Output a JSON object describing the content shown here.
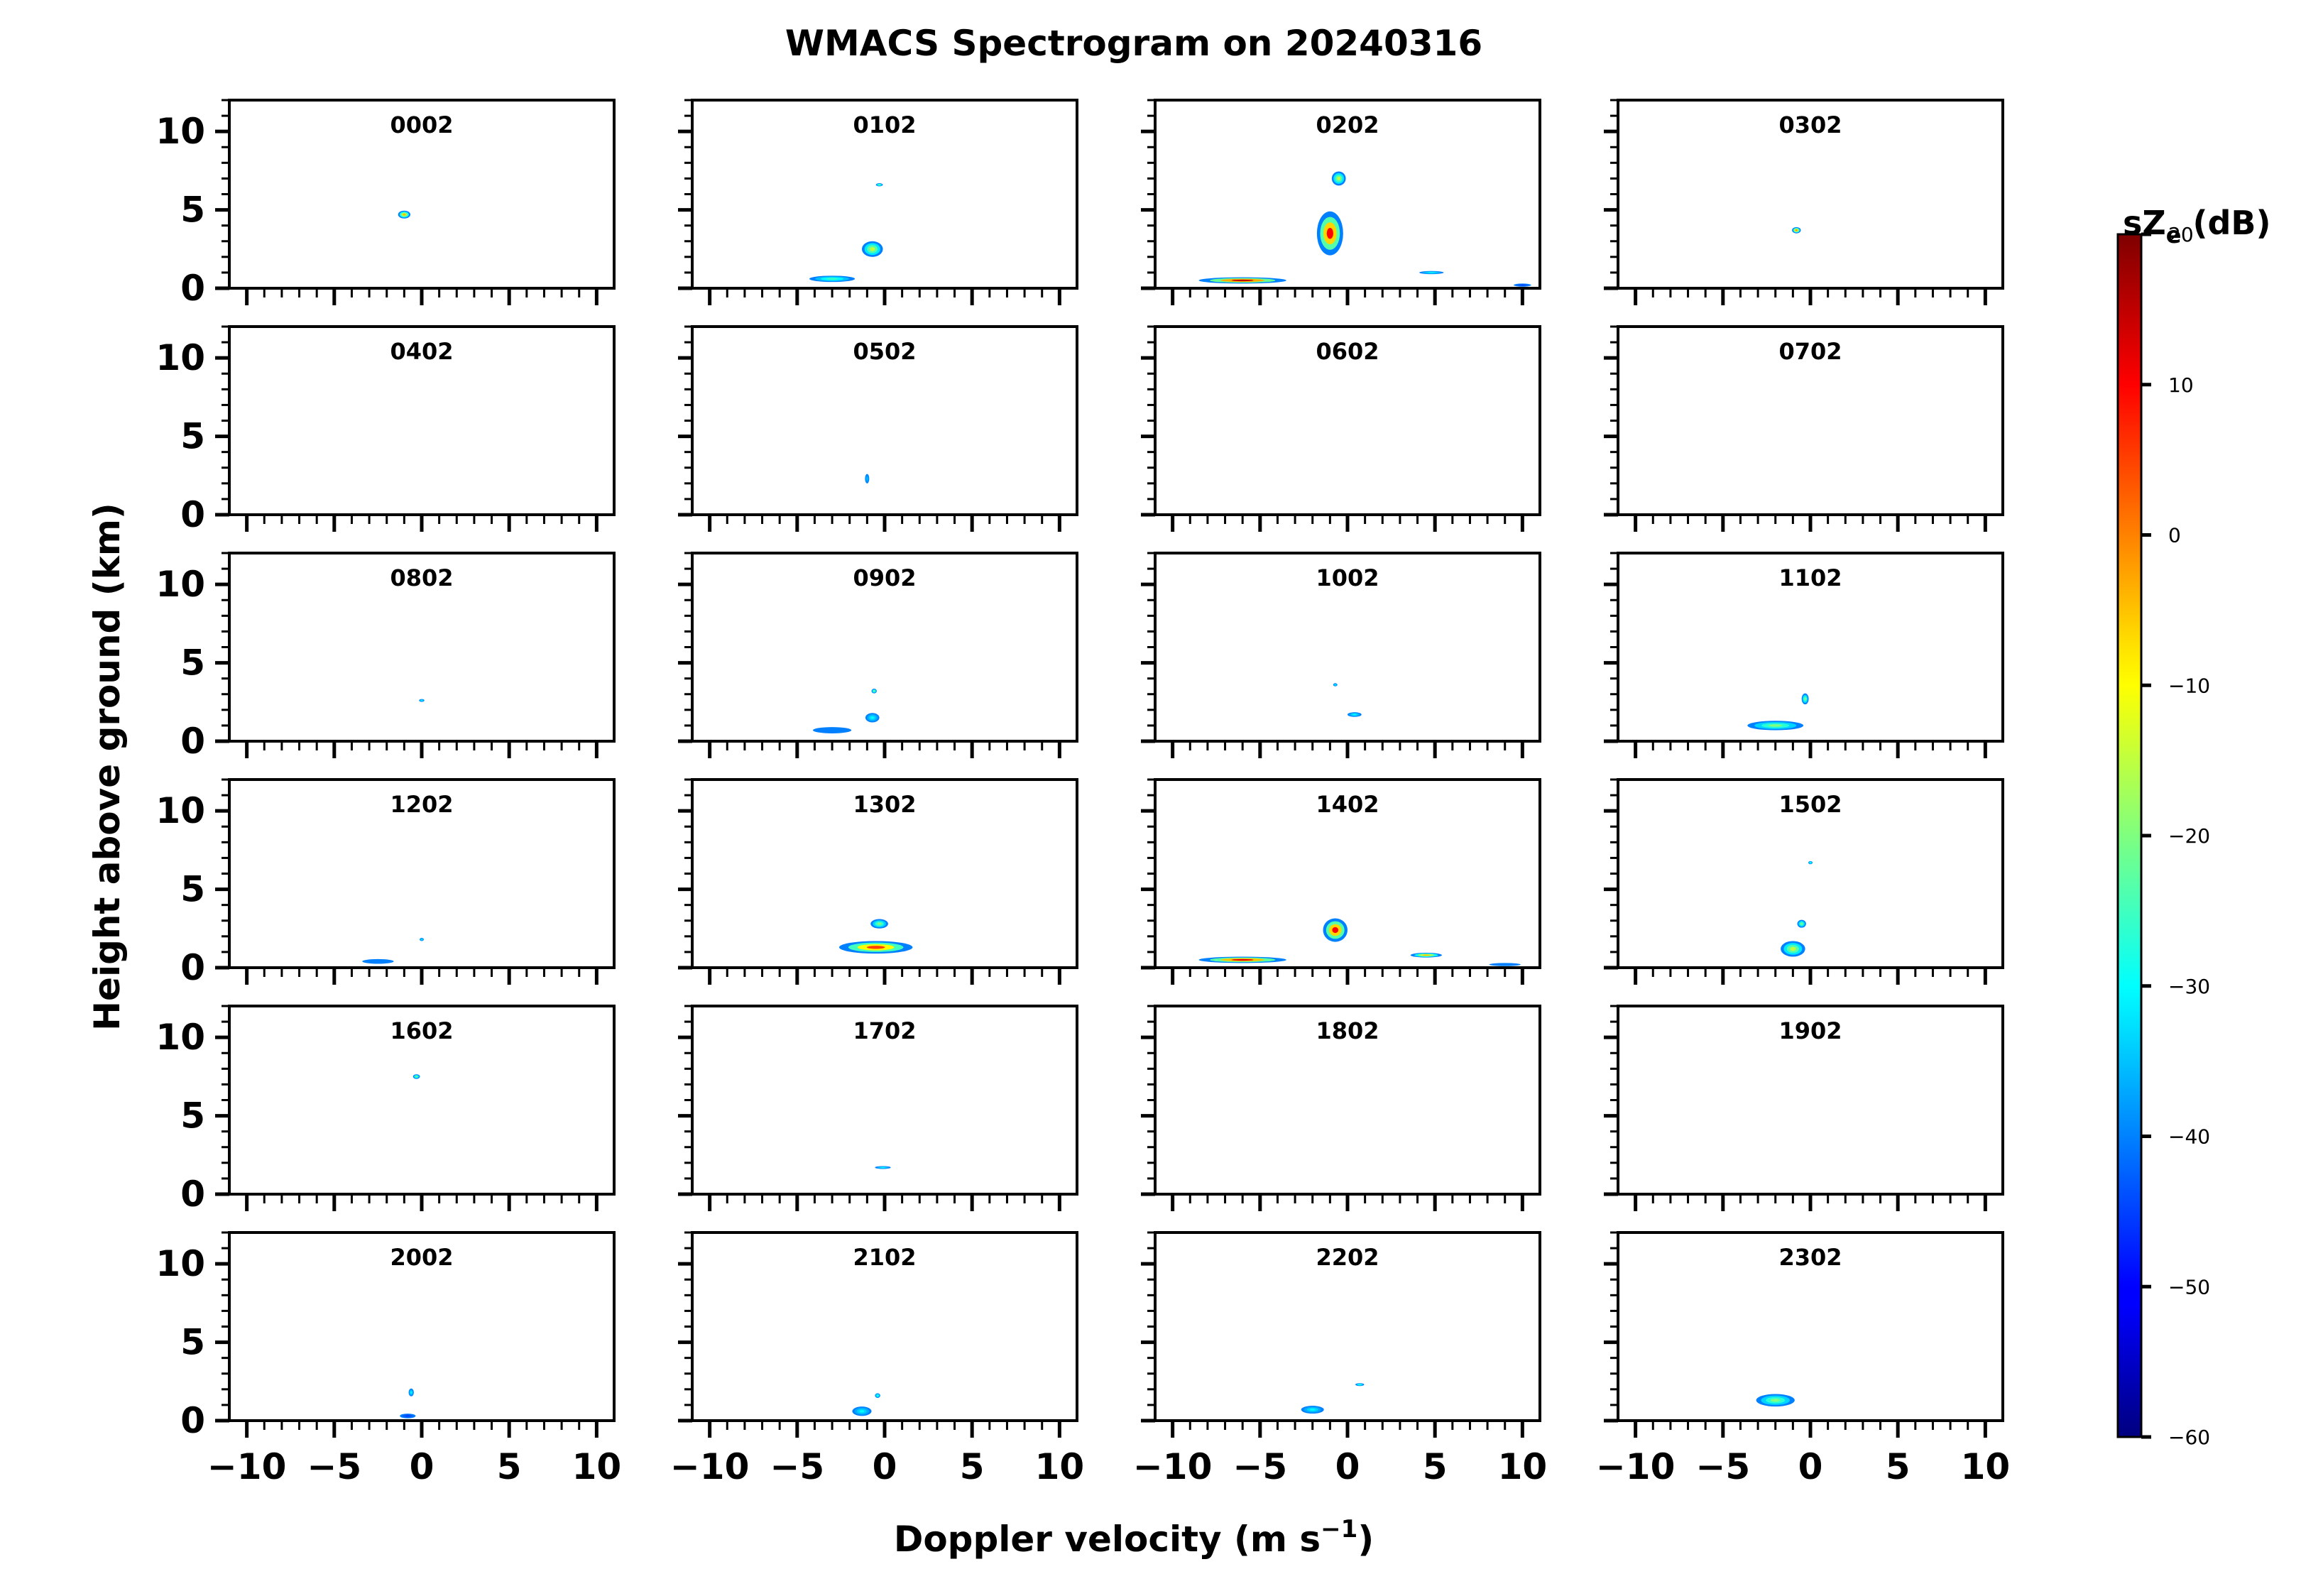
{
  "chart_data": {
    "type": "heatmap",
    "title": "WMACS Spectrogram on 20240316",
    "xlabel": "Doppler velocity (m s",
    "xlabel_sup": "−1",
    "xlabel_close": ")",
    "ylabel": "Height above ground (km)",
    "xlim": [
      -11,
      11
    ],
    "ylim": [
      0,
      12
    ],
    "x_ticks": [
      -10,
      -5,
      0,
      5,
      10
    ],
    "x_tick_labels": [
      "−10",
      "−5",
      "0",
      "5",
      "10"
    ],
    "y_ticks": [
      0,
      5,
      10
    ],
    "y_tick_labels": [
      "0",
      "5",
      "10"
    ],
    "grid": false,
    "colorbar": {
      "label": "sZ",
      "label_sub": "e",
      "label_unit": "(dB)",
      "min": -60,
      "max": 20,
      "ticks": [
        20,
        10,
        0,
        -10,
        -20,
        -30,
        -40,
        -50,
        -60
      ],
      "tick_labels": [
        "20",
        "10",
        "0",
        "−10",
        "−20",
        "−30",
        "−40",
        "−50",
        "−60"
      ],
      "colormap": "jet"
    },
    "panels": [
      {
        "time": "0002",
        "features": [
          {
            "v": -1.0,
            "z": 4.7,
            "dv": 0.7,
            "dz": 0.5,
            "peak": -5
          }
        ]
      },
      {
        "time": "0102",
        "features": [
          {
            "v": -0.3,
            "z": 6.6,
            "dv": 0.4,
            "dz": 0.2,
            "peak": -20
          },
          {
            "v": -0.7,
            "z": 2.5,
            "dv": 1.2,
            "dz": 1.0,
            "peak": -15
          },
          {
            "v": -3.0,
            "z": 0.6,
            "dv": 2.6,
            "dz": 0.4,
            "peak": -25
          }
        ]
      },
      {
        "time": "0202",
        "features": [
          {
            "v": -6.0,
            "z": 0.5,
            "dv": 5.0,
            "dz": 0.4,
            "peak": 15
          },
          {
            "v": -1.0,
            "z": 3.5,
            "dv": 1.5,
            "dz": 2.8,
            "peak": 10
          },
          {
            "v": -0.5,
            "z": 7.0,
            "dv": 0.8,
            "dz": 0.9,
            "peak": -15
          },
          {
            "v": 4.8,
            "z": 1.0,
            "dv": 1.4,
            "dz": 0.2,
            "peak": -30
          },
          {
            "v": 10.0,
            "z": 0.2,
            "dv": 1.0,
            "dz": 0.2,
            "peak": -45
          }
        ]
      },
      {
        "time": "0302",
        "features": [
          {
            "v": -0.8,
            "z": 3.7,
            "dv": 0.5,
            "dz": 0.4,
            "peak": 0
          }
        ]
      },
      {
        "time": "0402",
        "features": []
      },
      {
        "time": "0502",
        "features": [
          {
            "v": -1.0,
            "z": 2.3,
            "dv": 0.2,
            "dz": 0.6,
            "peak": -35
          }
        ]
      },
      {
        "time": "0602",
        "features": []
      },
      {
        "time": "0702",
        "features": []
      },
      {
        "time": "0802",
        "features": [
          {
            "v": 0.0,
            "z": 2.6,
            "dv": 0.3,
            "dz": 0.1,
            "peak": -30
          }
        ]
      },
      {
        "time": "0902",
        "features": [
          {
            "v": -3.0,
            "z": 0.7,
            "dv": 2.2,
            "dz": 0.4,
            "peak": -40
          },
          {
            "v": -0.7,
            "z": 1.5,
            "dv": 0.8,
            "dz": 0.6,
            "peak": -30
          },
          {
            "v": -0.6,
            "z": 3.2,
            "dv": 0.3,
            "dz": 0.3,
            "peak": -20
          }
        ]
      },
      {
        "time": "1002",
        "features": [
          {
            "v": 0.4,
            "z": 1.7,
            "dv": 0.8,
            "dz": 0.3,
            "peak": -30
          },
          {
            "v": -0.7,
            "z": 3.6,
            "dv": 0.2,
            "dz": 0.2,
            "peak": -30
          }
        ]
      },
      {
        "time": "1102",
        "features": [
          {
            "v": -2.0,
            "z": 1.0,
            "dv": 3.2,
            "dz": 0.6,
            "peak": -20
          },
          {
            "v": -0.3,
            "z": 2.7,
            "dv": 0.4,
            "dz": 0.7,
            "peak": -20
          }
        ]
      },
      {
        "time": "1202",
        "features": [
          {
            "v": -2.5,
            "z": 0.4,
            "dv": 1.8,
            "dz": 0.3,
            "peak": -40
          },
          {
            "v": 0.0,
            "z": 1.8,
            "dv": 0.2,
            "dz": 0.2,
            "peak": -30
          }
        ]
      },
      {
        "time": "1302",
        "features": [
          {
            "v": -0.5,
            "z": 1.3,
            "dv": 4.2,
            "dz": 0.8,
            "peak": 5
          },
          {
            "v": -0.3,
            "z": 2.8,
            "dv": 1.0,
            "dz": 0.6,
            "peak": -20
          }
        ]
      },
      {
        "time": "1402",
        "features": [
          {
            "v": -6.0,
            "z": 0.5,
            "dv": 5.0,
            "dz": 0.4,
            "peak": 12
          },
          {
            "v": -0.7,
            "z": 2.4,
            "dv": 1.4,
            "dz": 1.5,
            "peak": 10
          },
          {
            "v": 4.5,
            "z": 0.8,
            "dv": 1.8,
            "dz": 0.3,
            "peak": -5
          },
          {
            "v": 9.0,
            "z": 0.2,
            "dv": 1.8,
            "dz": 0.2,
            "peak": -40
          }
        ]
      },
      {
        "time": "1502",
        "features": [
          {
            "v": -1.0,
            "z": 1.2,
            "dv": 1.4,
            "dz": 1.0,
            "peak": -15
          },
          {
            "v": -0.5,
            "z": 2.8,
            "dv": 0.5,
            "dz": 0.5,
            "peak": -20
          },
          {
            "v": 0.0,
            "z": 6.7,
            "dv": 0.2,
            "dz": 0.2,
            "peak": -25
          }
        ]
      },
      {
        "time": "1602",
        "features": [
          {
            "v": -0.3,
            "z": 7.5,
            "dv": 0.4,
            "dz": 0.3,
            "peak": -20
          }
        ]
      },
      {
        "time": "1702",
        "features": [
          {
            "v": -0.1,
            "z": 1.7,
            "dv": 0.9,
            "dz": 0.15,
            "peak": -30
          }
        ]
      },
      {
        "time": "1802",
        "features": []
      },
      {
        "time": "1902",
        "features": []
      },
      {
        "time": "2002",
        "features": [
          {
            "v": -0.8,
            "z": 0.3,
            "dv": 0.9,
            "dz": 0.3,
            "peak": -45
          },
          {
            "v": -0.6,
            "z": 1.8,
            "dv": 0.3,
            "dz": 0.5,
            "peak": -30
          }
        ]
      },
      {
        "time": "2102",
        "features": [
          {
            "v": -1.3,
            "z": 0.6,
            "dv": 1.1,
            "dz": 0.6,
            "peak": -30
          },
          {
            "v": -0.4,
            "z": 1.6,
            "dv": 0.3,
            "dz": 0.3,
            "peak": -25
          }
        ]
      },
      {
        "time": "2202",
        "features": [
          {
            "v": -2.0,
            "z": 0.7,
            "dv": 1.3,
            "dz": 0.5,
            "peak": -30
          },
          {
            "v": 0.7,
            "z": 2.3,
            "dv": 0.5,
            "dz": 0.15,
            "peak": -25
          }
        ]
      },
      {
        "time": "2302",
        "features": [
          {
            "v": -2.0,
            "z": 1.3,
            "dv": 2.2,
            "dz": 0.8,
            "peak": -20
          }
        ]
      }
    ]
  }
}
